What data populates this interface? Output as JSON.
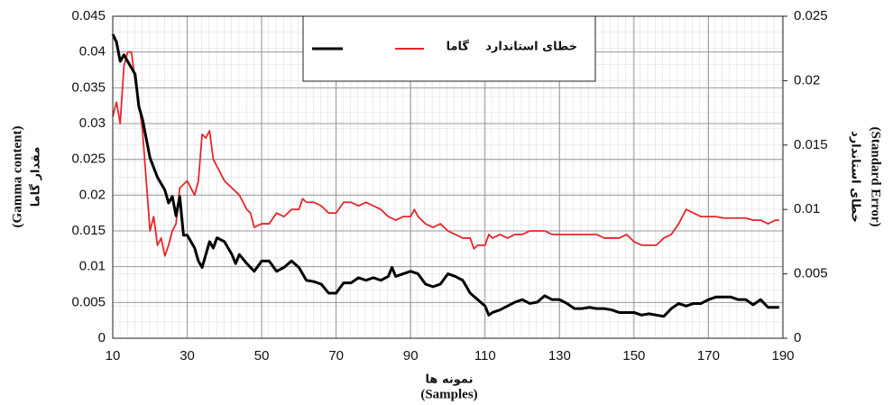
{
  "chart_data": {
    "type": "line",
    "x_label": "(Samples)",
    "x_label_fa": "نمونه ها",
    "y_label": "(Gamma content)",
    "y_label_fa": "مقدار گاما",
    "y2_label": "(Standard Error)",
    "y2_label_fa": "خطای استاندارد",
    "xlim": [
      10,
      190
    ],
    "xticks": [
      10,
      30,
      50,
      70,
      90,
      110,
      130,
      150,
      170,
      190
    ],
    "ylim": [
      0,
      0.045
    ],
    "yticks": [
      0,
      0.005,
      0.01,
      0.015,
      0.02,
      0.025,
      0.03,
      0.035,
      0.04,
      0.045
    ],
    "y2lim": [
      0,
      0.025
    ],
    "y2ticks": [
      0,
      0.005,
      0.01,
      0.015,
      0.02,
      0.025
    ],
    "grid": true,
    "legend": "top",
    "series": [
      {
        "name": "گاما",
        "color": "#e8262b",
        "axis": "y",
        "x": [
          10,
          11,
          12,
          13,
          14,
          15,
          16,
          17,
          18,
          19,
          20,
          21,
          22,
          23,
          24,
          25,
          26,
          27,
          28,
          30,
          31,
          32,
          33,
          34,
          35,
          36,
          37,
          38,
          40,
          42,
          44,
          46,
          47,
          48,
          50,
          52,
          54,
          56,
          58,
          60,
          61,
          62,
          64,
          66,
          68,
          70,
          72,
          74,
          76,
          78,
          80,
          82,
          84,
          86,
          88,
          90,
          91,
          92,
          94,
          96,
          98,
          100,
          102,
          104,
          106,
          107,
          108,
          110,
          111,
          112,
          114,
          116,
          118,
          120,
          122,
          124,
          126,
          128,
          130,
          132,
          134,
          136,
          138,
          140,
          142,
          144,
          146,
          148,
          150,
          152,
          154,
          156,
          158,
          160,
          162,
          164,
          166,
          168,
          170,
          172,
          174,
          176,
          178,
          180,
          182,
          184,
          186,
          188,
          189
        ],
        "values": [
          0.031,
          0.033,
          0.03,
          0.038,
          0.04,
          0.04,
          0.036,
          0.033,
          0.029,
          0.022,
          0.015,
          0.017,
          0.013,
          0.014,
          0.0115,
          0.013,
          0.015,
          0.016,
          0.021,
          0.022,
          0.021,
          0.02,
          0.022,
          0.0285,
          0.028,
          0.029,
          0.025,
          0.024,
          0.022,
          0.021,
          0.02,
          0.018,
          0.0175,
          0.0155,
          0.016,
          0.016,
          0.0175,
          0.017,
          0.018,
          0.018,
          0.0195,
          0.019,
          0.019,
          0.0185,
          0.0175,
          0.0175,
          0.019,
          0.019,
          0.0185,
          0.019,
          0.0185,
          0.018,
          0.017,
          0.0165,
          0.017,
          0.017,
          0.018,
          0.017,
          0.016,
          0.0155,
          0.016,
          0.015,
          0.0145,
          0.014,
          0.014,
          0.0125,
          0.013,
          0.013,
          0.0145,
          0.014,
          0.0145,
          0.014,
          0.0145,
          0.0145,
          0.015,
          0.015,
          0.015,
          0.0145,
          0.0145,
          0.0145,
          0.0145,
          0.0145,
          0.0145,
          0.0145,
          0.014,
          0.014,
          0.014,
          0.0145,
          0.0135,
          0.013,
          0.013,
          0.013,
          0.014,
          0.0145,
          0.016,
          0.018,
          0.0175,
          0.017,
          0.017,
          0.017,
          0.0168,
          0.0168,
          0.0168,
          0.0168,
          0.0165,
          0.0165,
          0.016,
          0.0165,
          0.0165
        ]
      },
      {
        "name": "خطای استاندارد",
        "color": "#000000",
        "axis": "y2",
        "x": [
          10,
          11,
          12,
          13,
          14,
          15,
          16,
          17,
          18,
          19,
          20,
          22,
          24,
          25,
          26,
          27,
          28,
          29,
          30,
          32,
          33,
          34,
          35,
          36,
          37,
          38,
          40,
          42,
          43,
          44,
          46,
          48,
          50,
          52,
          54,
          56,
          58,
          60,
          62,
          64,
          66,
          68,
          70,
          72,
          74,
          76,
          78,
          80,
          82,
          84,
          85,
          86,
          88,
          90,
          92,
          94,
          96,
          98,
          100,
          102,
          104,
          106,
          108,
          110,
          111,
          112,
          114,
          116,
          118,
          120,
          122,
          124,
          126,
          128,
          130,
          132,
          134,
          136,
          138,
          140,
          142,
          144,
          146,
          148,
          150,
          152,
          154,
          156,
          158,
          160,
          162,
          164,
          166,
          168,
          170,
          172,
          174,
          176,
          178,
          180,
          182,
          184,
          186,
          188,
          189
        ],
        "values": [
          0.0236,
          0.023,
          0.0215,
          0.022,
          0.0215,
          0.021,
          0.0205,
          0.018,
          0.017,
          0.0155,
          0.014,
          0.0125,
          0.0115,
          0.0105,
          0.011,
          0.0095,
          0.011,
          0.008,
          0.008,
          0.007,
          0.006,
          0.0055,
          0.0065,
          0.0075,
          0.007,
          0.0078,
          0.0075,
          0.0065,
          0.0058,
          0.0065,
          0.0058,
          0.0052,
          0.006,
          0.006,
          0.0052,
          0.0055,
          0.006,
          0.0055,
          0.0045,
          0.0044,
          0.0042,
          0.0035,
          0.0035,
          0.0043,
          0.0043,
          0.0047,
          0.0045,
          0.0047,
          0.0045,
          0.0048,
          0.0055,
          0.0048,
          0.005,
          0.0052,
          0.005,
          0.0042,
          0.004,
          0.0042,
          0.005,
          0.0048,
          0.0045,
          0.0035,
          0.003,
          0.0025,
          0.0018,
          0.002,
          0.0022,
          0.0025,
          0.0028,
          0.003,
          0.0027,
          0.0028,
          0.0033,
          0.003,
          0.003,
          0.0027,
          0.0023,
          0.0023,
          0.0024,
          0.0023,
          0.0023,
          0.0022,
          0.002,
          0.002,
          0.002,
          0.0018,
          0.0019,
          0.0018,
          0.0017,
          0.0023,
          0.0027,
          0.0025,
          0.0027,
          0.0027,
          0.003,
          0.0032,
          0.0032,
          0.0032,
          0.003,
          0.003,
          0.0026,
          0.003,
          0.0024,
          0.0024,
          0.0024
        ]
      }
    ]
  }
}
